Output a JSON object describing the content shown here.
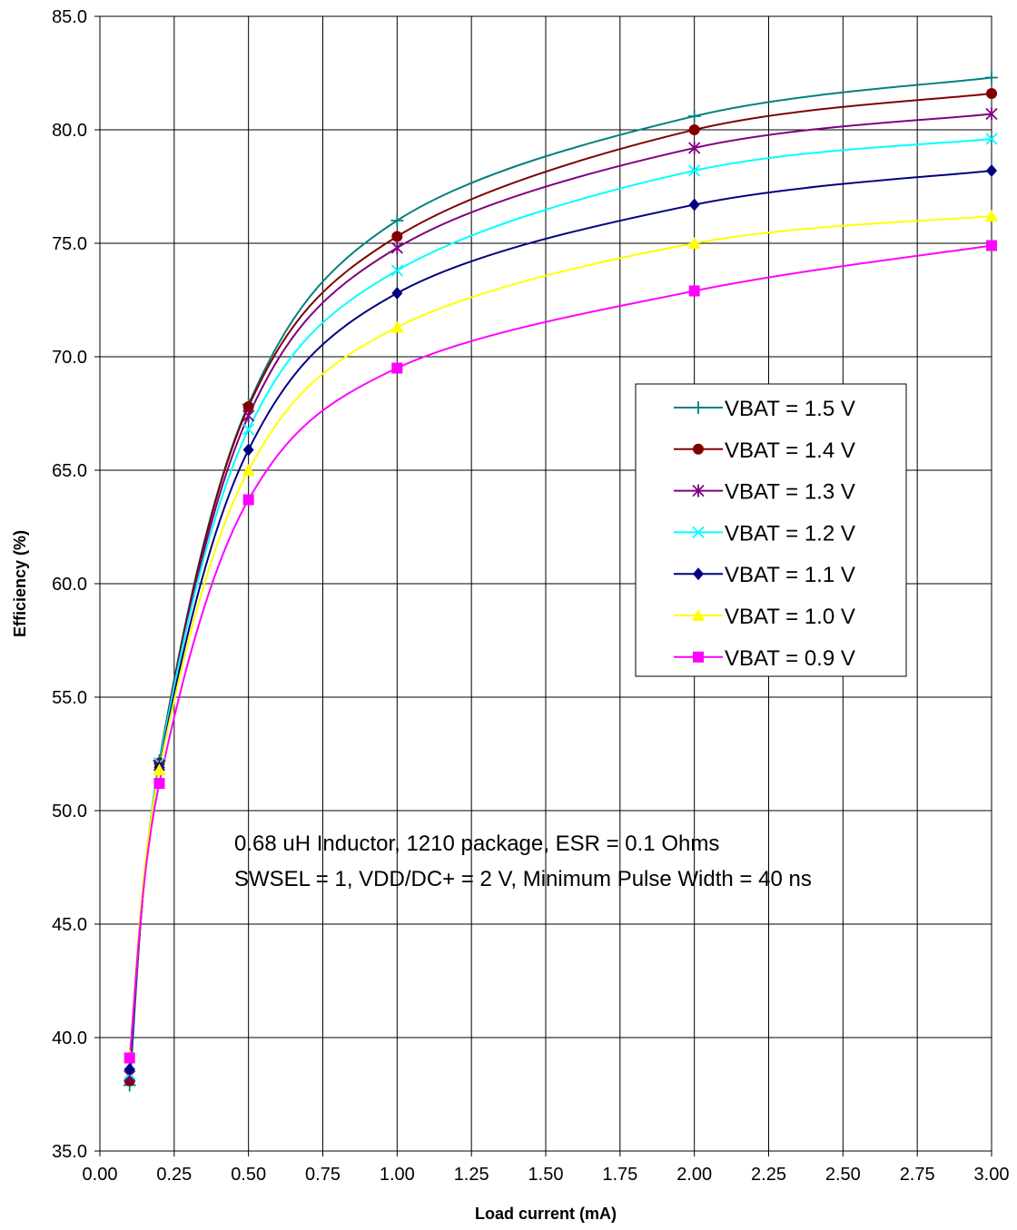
{
  "chart_data": {
    "type": "line",
    "xlabel": "Load current (mA)",
    "ylabel": "Efficiency (%)",
    "xlim": [
      0,
      3
    ],
    "ylim": [
      35,
      85
    ],
    "x_ticks": [
      "0.00",
      "0.25",
      "0.50",
      "0.75",
      "1.00",
      "1.25",
      "1.50",
      "1.75",
      "2.00",
      "2.25",
      "2.50",
      "2.75",
      "3.00"
    ],
    "y_ticks": [
      "35.0",
      "40.0",
      "45.0",
      "50.0",
      "55.0",
      "60.0",
      "65.0",
      "70.0",
      "75.0",
      "80.0",
      "85.0"
    ],
    "grid": true,
    "legend_position": "right-middle",
    "x": [
      0.1,
      0.2,
      0.5,
      1.0,
      2.0,
      3.0
    ],
    "series": [
      {
        "name": "VBAT = 1.5 V",
        "color": "#008080",
        "marker": "plus",
        "values": [
          37.9,
          52.2,
          67.9,
          76.0,
          80.6,
          82.3
        ]
      },
      {
        "name": "VBAT = 1.4 V",
        "color": "#800000",
        "marker": "circle",
        "values": [
          38.1,
          52.1,
          67.8,
          75.3,
          80.0,
          81.6
        ]
      },
      {
        "name": "VBAT = 1.3 V",
        "color": "#800080",
        "marker": "asterisk",
        "values": [
          38.3,
          52.0,
          67.4,
          74.8,
          79.2,
          80.7
        ]
      },
      {
        "name": "VBAT = 1.2 V",
        "color": "#00FFFF",
        "marker": "x",
        "values": [
          38.4,
          52.1,
          66.8,
          73.8,
          78.2,
          79.6
        ]
      },
      {
        "name": "VBAT = 1.1 V",
        "color": "#000080",
        "marker": "diamond",
        "values": [
          38.6,
          51.9,
          65.9,
          72.8,
          76.7,
          78.2
        ]
      },
      {
        "name": "VBAT = 1.0 V",
        "color": "#FFFF00",
        "marker": "triangle",
        "values": [
          39.2,
          51.8,
          65.0,
          71.3,
          75.0,
          76.2
        ]
      },
      {
        "name": "VBAT = 0.9 V",
        "color": "#FF00FF",
        "marker": "square",
        "values": [
          39.1,
          51.2,
          63.7,
          69.5,
          72.9,
          74.9
        ]
      }
    ],
    "annotations": [
      "0.68 uH Inductor, 1210 package, ESR = 0.1 Ohms",
      "SWSEL = 1,  VDD/DC+ = 2 V, Minimum Pulse Width = 40 ns"
    ]
  }
}
